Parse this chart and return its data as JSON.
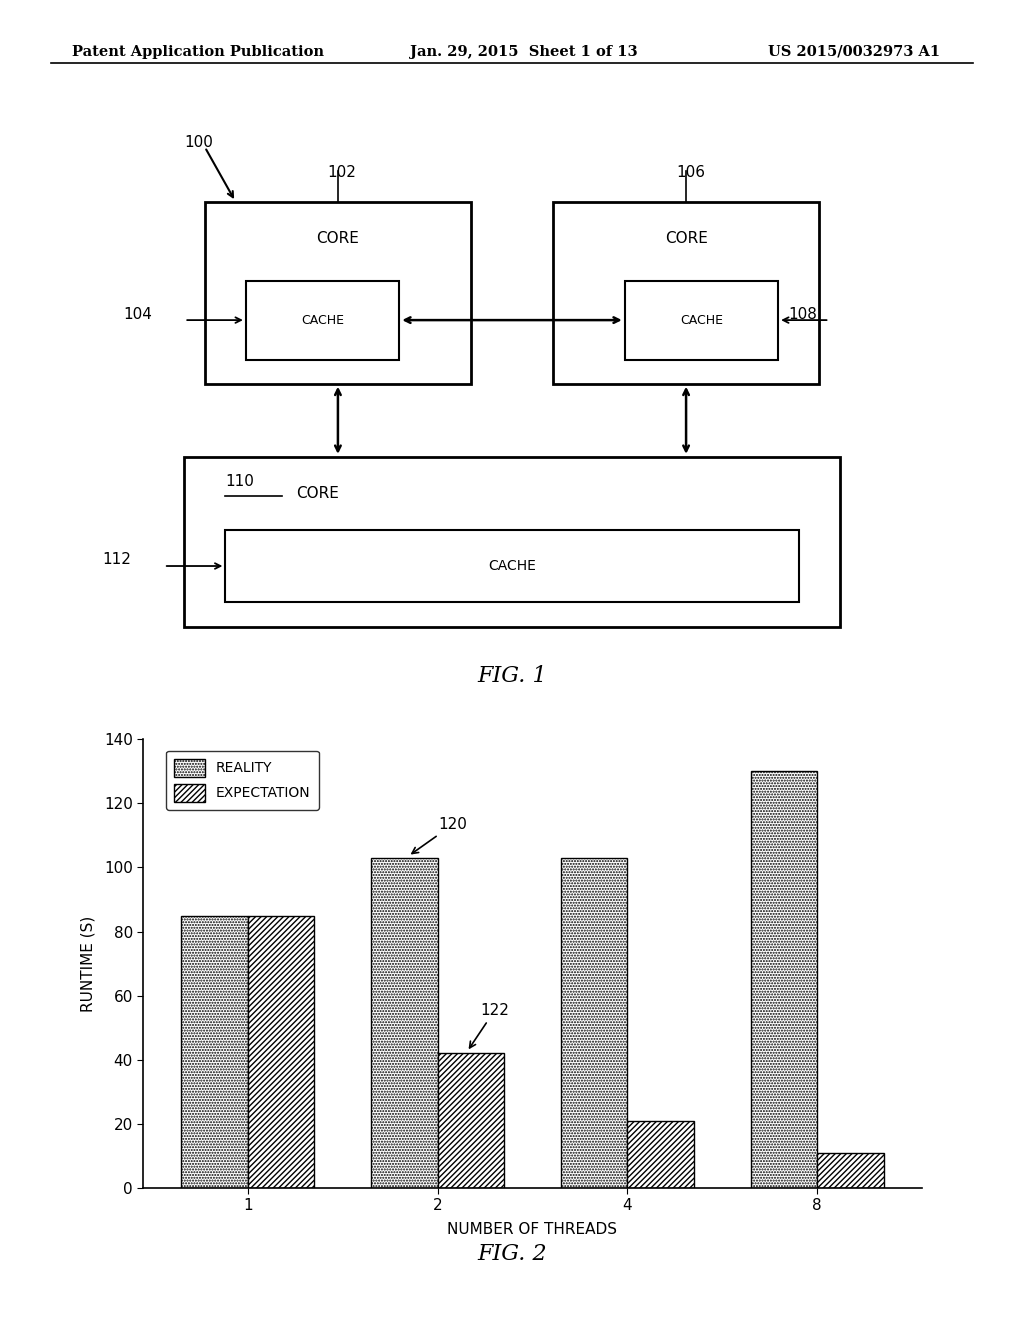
{
  "header_left": "Patent Application Publication",
  "header_mid": "Jan. 29, 2015  Sheet 1 of 13",
  "header_right": "US 2015/0032973 A1",
  "fig1": {
    "title": "FIG. 1",
    "label_100": "100",
    "label_102": "102",
    "label_104": "104",
    "label_106": "106",
    "label_108": "108",
    "label_110": "110",
    "label_112": "112"
  },
  "fig2": {
    "title": "FIG. 2",
    "xlabel": "NUMBER OF THREADS",
    "ylabel": "RUNTIME (S)",
    "legend_reality": "REALITY",
    "legend_expectation": "EXPECTATION",
    "label_120": "120",
    "label_122": "122",
    "threads": [
      1,
      2,
      4,
      8
    ],
    "thread_labels": [
      "1",
      "2",
      "4",
      "8"
    ],
    "reality": [
      85,
      103,
      103,
      130
    ],
    "expectation": [
      85,
      42,
      21,
      11
    ],
    "ylim": [
      0,
      140
    ],
    "yticks": [
      0,
      20,
      40,
      60,
      80,
      100,
      120,
      140
    ],
    "bar_width": 0.35
  }
}
